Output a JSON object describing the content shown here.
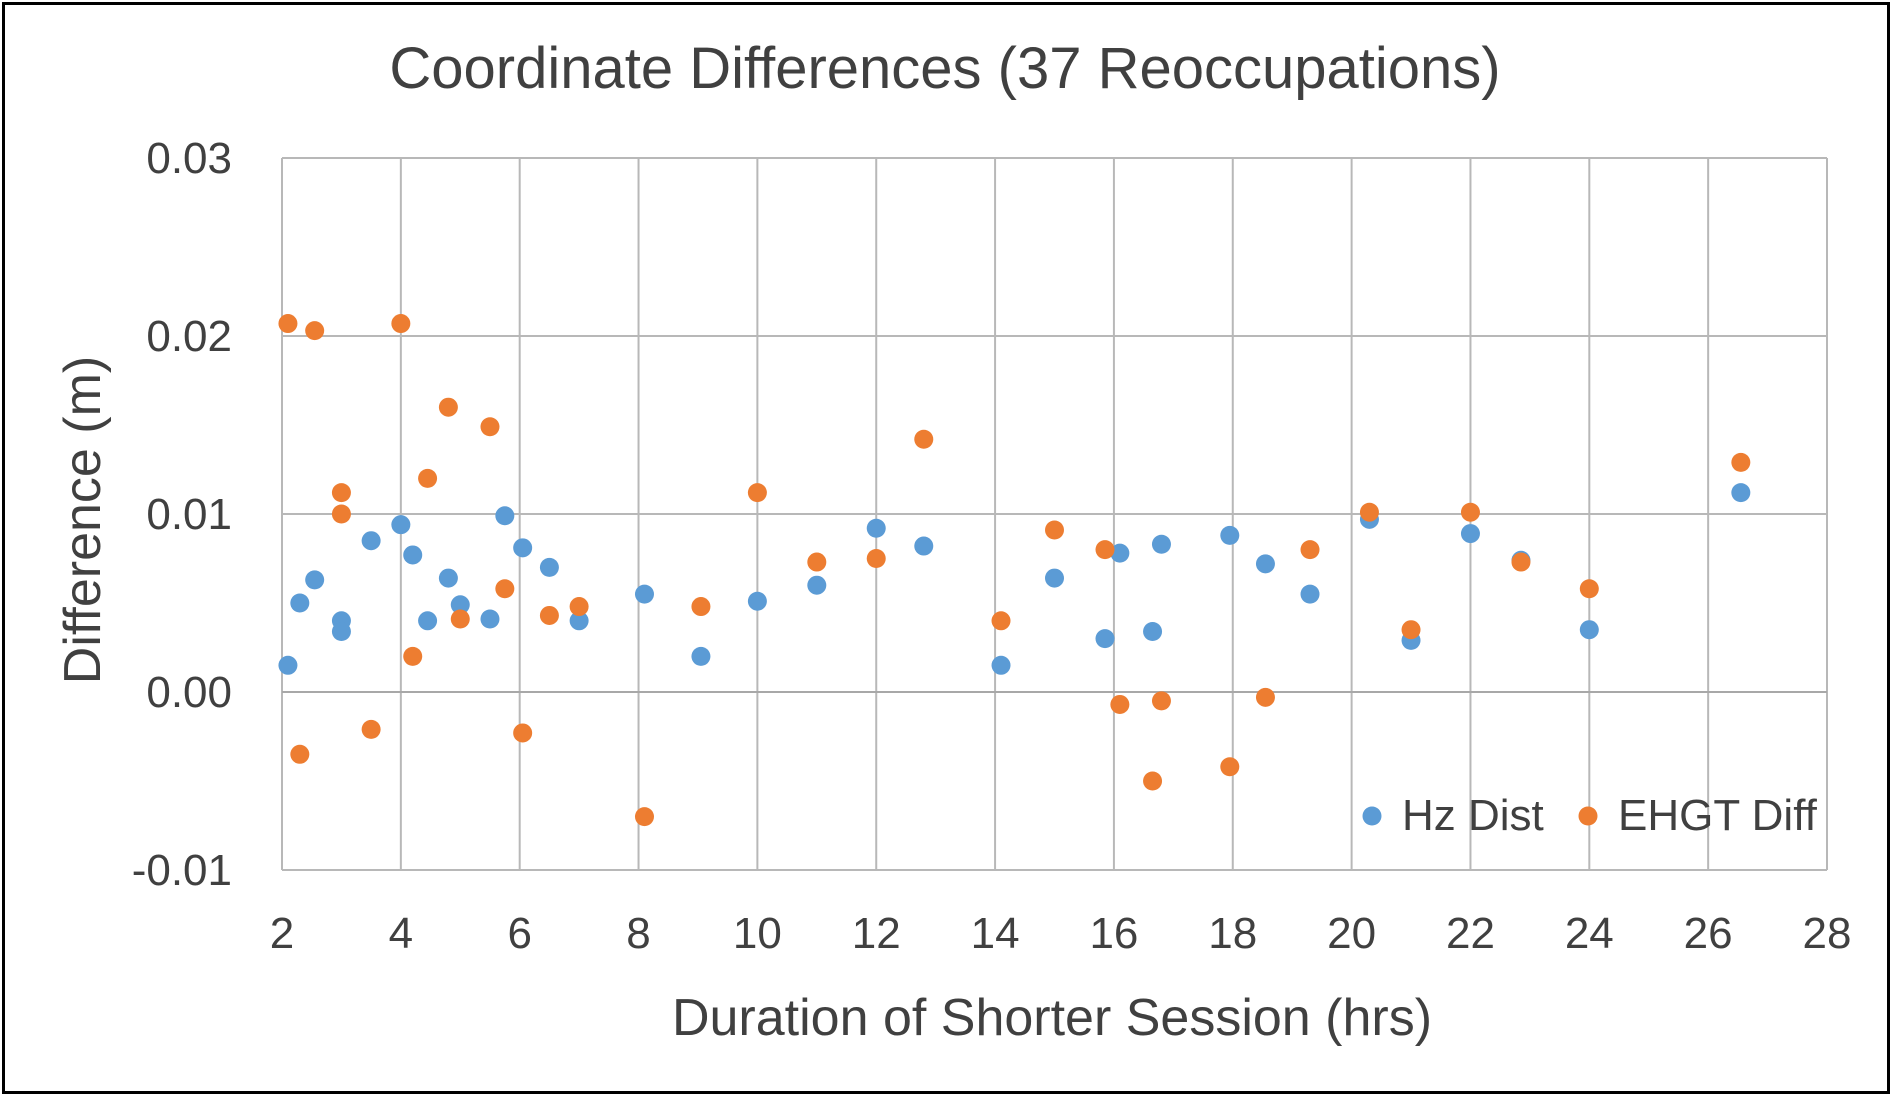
{
  "chart_data": {
    "type": "scatter",
    "title": "Coordinate Differences (37 Reoccupations)",
    "xlabel": "Duration of Shorter Session (hrs)",
    "ylabel": "Difference (m)",
    "xlim": [
      2,
      28
    ],
    "ylim": [
      -0.01,
      0.03
    ],
    "xticks": [
      "2",
      "4",
      "6",
      "8",
      "10",
      "12",
      "14",
      "16",
      "18",
      "20",
      "22",
      "24",
      "26",
      "28"
    ],
    "yticks": [
      "0.03",
      "0.02",
      "0.01",
      "0.00",
      "-0.01"
    ],
    "grid": true,
    "legend_position": "bottom-right",
    "series": [
      {
        "name": "Hz Dist",
        "color": "#5b9bd5",
        "points": [
          [
            2.1,
            0.0015
          ],
          [
            2.3,
            0.005
          ],
          [
            2.55,
            0.0063
          ],
          [
            3.0,
            0.004
          ],
          [
            3.0,
            0.0034
          ],
          [
            3.5,
            0.0085
          ],
          [
            4.0,
            0.0094
          ],
          [
            4.2,
            0.0077
          ],
          [
            4.45,
            0.004
          ],
          [
            4.8,
            0.0064
          ],
          [
            5.0,
            0.0049
          ],
          [
            5.5,
            0.0041
          ],
          [
            5.75,
            0.0099
          ],
          [
            6.05,
            0.0081
          ],
          [
            6.5,
            0.007
          ],
          [
            7.0,
            0.004
          ],
          [
            8.1,
            0.0055
          ],
          [
            9.05,
            0.002
          ],
          [
            10.0,
            0.0051
          ],
          [
            11.0,
            0.006
          ],
          [
            12.0,
            0.0092
          ],
          [
            12.8,
            0.0082
          ],
          [
            14.1,
            0.0015
          ],
          [
            15.0,
            0.0064
          ],
          [
            15.85,
            0.003
          ],
          [
            16.1,
            0.0078
          ],
          [
            16.65,
            0.0034
          ],
          [
            16.8,
            0.0083
          ],
          [
            17.95,
            0.0088
          ],
          [
            18.55,
            0.0072
          ],
          [
            19.3,
            0.0055
          ],
          [
            20.3,
            0.0097
          ],
          [
            21.0,
            0.0029
          ],
          [
            22.0,
            0.0089
          ],
          [
            22.85,
            0.0074
          ],
          [
            24.0,
            0.0035
          ],
          [
            26.55,
            0.0112
          ]
        ]
      },
      {
        "name": "EHGT Diff",
        "color": "#ed7d31",
        "points": [
          [
            2.1,
            0.0207
          ],
          [
            2.3,
            -0.0035
          ],
          [
            2.55,
            0.0203
          ],
          [
            3.0,
            0.0112
          ],
          [
            3.0,
            0.01
          ],
          [
            3.5,
            -0.0021
          ],
          [
            4.0,
            0.0207
          ],
          [
            4.2,
            0.002
          ],
          [
            4.45,
            0.012
          ],
          [
            4.8,
            0.016
          ],
          [
            5.0,
            0.0041
          ],
          [
            5.5,
            0.0149
          ],
          [
            5.75,
            0.0058
          ],
          [
            6.05,
            -0.0023
          ],
          [
            6.5,
            0.0043
          ],
          [
            7.0,
            0.0048
          ],
          [
            8.1,
            -0.007
          ],
          [
            9.05,
            0.0048
          ],
          [
            10.0,
            0.0112
          ],
          [
            11.0,
            0.0073
          ],
          [
            12.0,
            0.0075
          ],
          [
            12.8,
            0.0142
          ],
          [
            14.1,
            0.004
          ],
          [
            15.0,
            0.0091
          ],
          [
            15.85,
            0.008
          ],
          [
            16.1,
            -0.0007
          ],
          [
            16.65,
            -0.005
          ],
          [
            16.8,
            -0.0005
          ],
          [
            17.95,
            -0.0042
          ],
          [
            18.55,
            -0.0003
          ],
          [
            19.3,
            0.008
          ],
          [
            20.3,
            0.0101
          ],
          [
            21.0,
            0.0035
          ],
          [
            22.0,
            0.0101
          ],
          [
            22.85,
            0.0073
          ],
          [
            24.0,
            0.0058
          ],
          [
            26.55,
            0.0129
          ]
        ]
      }
    ]
  }
}
